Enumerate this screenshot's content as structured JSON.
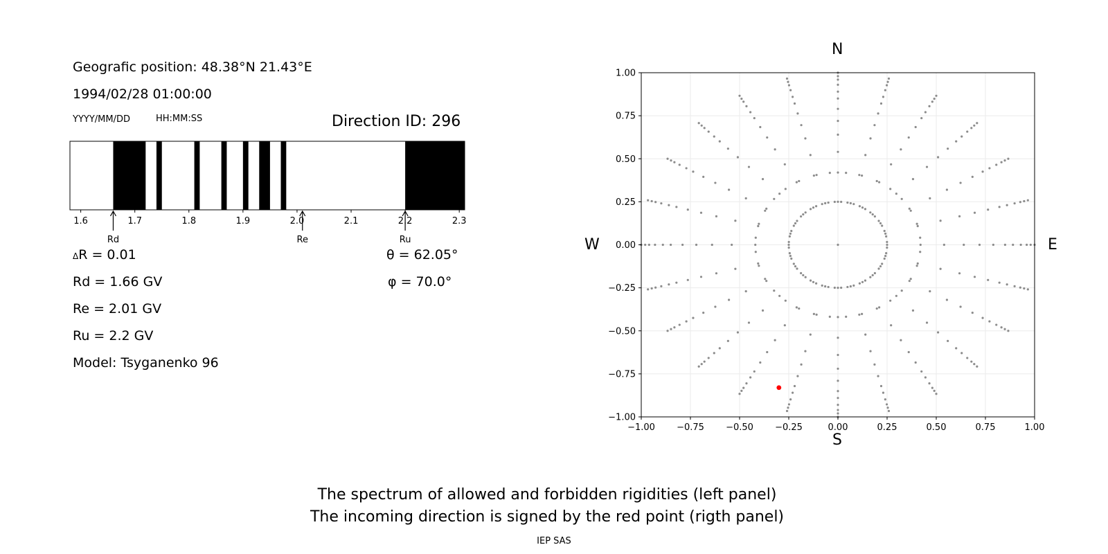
{
  "left_panel": {
    "position": "Geografic position: 48.38°N 21.43°E",
    "datetime": "1994/02/28 01:00:00",
    "date_format": "YYYY/MM/DD",
    "time_format": "HH:MM:SS",
    "direction": "Direction ID: 296",
    "delta_r": "R = 0.01",
    "delta_symbol": "Δ",
    "rd": "Rd = 1.66 GV",
    "re": "Re = 2.01 GV",
    "ru": "Ru = 2.2 GV",
    "model": "Model: Tsyganenko 96",
    "theta": "θ = 62.05°",
    "phi": "φ = 70.0°"
  },
  "right_panel": {
    "north": "N",
    "south": "S",
    "west": "W",
    "east": "E"
  },
  "caption": {
    "line1": "The spectrum of allowed and forbidden rigidities (left panel)",
    "line2": "The incoming direction is signed by the red point (rigth panel)",
    "credit": "IEP SAS"
  },
  "chart_data": [
    {
      "type": "spectrum",
      "xlim": [
        1.58,
        2.31
      ],
      "ticks": [
        1.6,
        1.7,
        1.8,
        1.9,
        2.0,
        2.1,
        2.2,
        2.3
      ],
      "tick_labels": [
        "1.6",
        "1.7",
        "1.8",
        "1.9",
        "2.0",
        "2.1",
        "2.2",
        "2.3"
      ],
      "forbidden_bands": [
        [
          1.66,
          1.72
        ],
        [
          1.74,
          1.75
        ],
        [
          1.81,
          1.82
        ],
        [
          1.86,
          1.87
        ],
        [
          1.9,
          1.91
        ],
        [
          1.93,
          1.95
        ],
        [
          1.97,
          1.98
        ],
        [
          2.2,
          2.31
        ]
      ],
      "markers": [
        {
          "label": "Rd",
          "value": 1.66
        },
        {
          "label": "Re",
          "value": 2.01
        },
        {
          "label": "Ru",
          "value": 2.2
        }
      ]
    },
    {
      "type": "scatter",
      "xlim": [
        -1.0,
        1.0
      ],
      "ylim": [
        -1.0,
        1.0
      ],
      "grid": true,
      "xticks": [
        -1.0,
        -0.75,
        -0.5,
        -0.25,
        0.0,
        0.25,
        0.5,
        0.75,
        1.0
      ],
      "yticks": [
        -1.0,
        -0.75,
        -0.5,
        -0.25,
        0.0,
        0.25,
        0.5,
        0.75,
        1.0
      ],
      "xtick_labels": [
        "−1.00",
        "−0.75",
        "−0.50",
        "−0.25",
        "0.00",
        "0.25",
        "0.50",
        "0.75",
        "1.00"
      ],
      "ytick_labels": [
        "−1.00",
        "−0.75",
        "−0.50",
        "−0.25",
        "0.00",
        "0.25",
        "0.50",
        "0.75",
        "1.00"
      ],
      "grid_series": {
        "color": "#8c8c8c",
        "center": [
          0.0,
          0.0
        ],
        "rays": 24,
        "rings": [
          0.25,
          0.42,
          0.54,
          0.64,
          0.72,
          0.79,
          0.85,
          0.89,
          0.93,
          0.96,
          0.98,
          1.0
        ]
      },
      "highlight": {
        "x": -0.3,
        "y": -0.83,
        "color": "#ff0000"
      }
    }
  ]
}
